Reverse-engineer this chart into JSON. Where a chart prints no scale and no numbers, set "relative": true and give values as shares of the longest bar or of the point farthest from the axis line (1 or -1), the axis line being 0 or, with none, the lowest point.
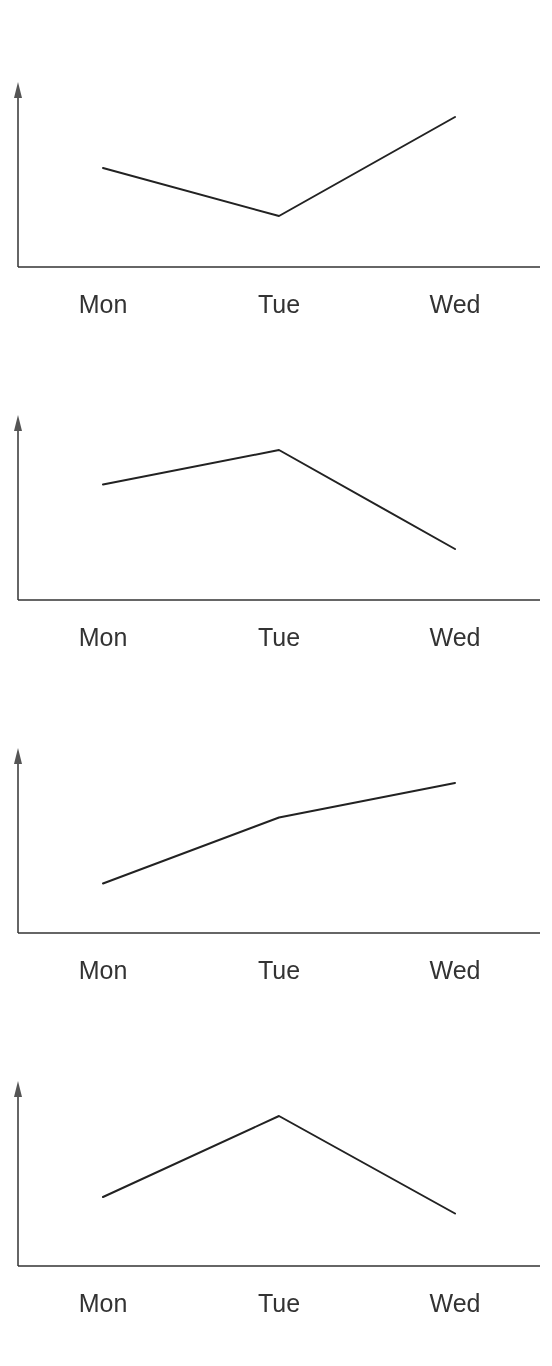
{
  "chart_data": [
    {
      "type": "line",
      "relative": true,
      "categories": [
        "Mon",
        "Tue",
        "Wed"
      ],
      "values": [
        0.66,
        0.34,
        1
      ],
      "color": "#222222"
    },
    {
      "type": "line",
      "relative": true,
      "categories": [
        "Mon",
        "Tue",
        "Wed"
      ],
      "values": [
        0.77,
        1,
        0.34
      ],
      "color": "#222222"
    },
    {
      "type": "line",
      "relative": true,
      "categories": [
        "Mon",
        "Tue",
        "Wed"
      ],
      "values": [
        0.33,
        0.77,
        1
      ],
      "color": "#222222"
    },
    {
      "type": "line",
      "relative": true,
      "categories": [
        "Mon",
        "Tue",
        "Wed"
      ],
      "values": [
        0.46,
        1,
        0.35
      ],
      "color": "#222222"
    }
  ]
}
